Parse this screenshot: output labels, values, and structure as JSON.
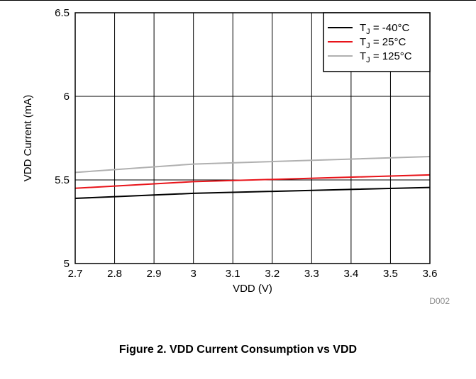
{
  "figure": {
    "caption": "Figure 2. VDD Current Consumption vs VDD",
    "code": "D002"
  },
  "chart_data": {
    "type": "line",
    "xlabel": "VDD (V)",
    "ylabel": "VDD Current (mA)",
    "xlim": [
      2.7,
      3.6
    ],
    "ylim": [
      5,
      6.5
    ],
    "x_ticks": [
      "2.7",
      "2.8",
      "2.9",
      "3",
      "3.1",
      "3.2",
      "3.3",
      "3.4",
      "3.5",
      "3.6"
    ],
    "y_ticks": [
      "5",
      "5.5",
      "6",
      "6.5"
    ],
    "grid": true,
    "legend_position": "top-right",
    "x": [
      2.7,
      3.0,
      3.6
    ],
    "series": [
      {
        "name_main": "T",
        "name_sub": "J",
        "name_rest": " = -40°C",
        "color": "#000000",
        "values": [
          5.39,
          5.42,
          5.455
        ]
      },
      {
        "name_main": "T",
        "name_sub": "J",
        "name_rest": " = 25°C",
        "color": "#e8141a",
        "values": [
          5.45,
          5.49,
          5.53
        ]
      },
      {
        "name_main": "T",
        "name_sub": "J",
        "name_rest": " = 125°C",
        "color": "#b0b0b0",
        "values": [
          5.545,
          5.595,
          5.64
        ]
      }
    ]
  }
}
